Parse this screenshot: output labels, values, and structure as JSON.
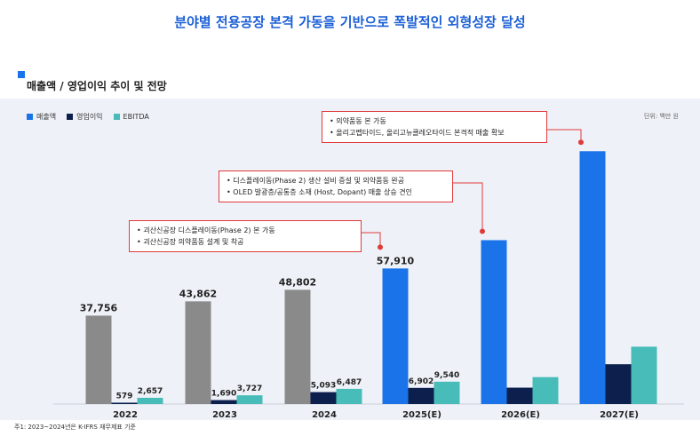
{
  "headline": "분야별 전용공장 본격 가동을 기반으로 폭발적인 외형성장 달성",
  "section_title": "매출액 / 영업이익 추이 및 전망",
  "unit": "단위: 백만 원",
  "footnote": "주1: 2023~2024년은 K-IFRS 재무제표 기준",
  "callouts": [
    {
      "lines": [
        "괴산신공장 디스플레이동(Phase 2) 본 가동",
        "괴산신공장 의약품동 설계 및 착공"
      ]
    },
    {
      "lines": [
        "디스플레이동(Phase 2) 생산 설비 증설 및 의약품동 완공",
        "OLED 발광층/공통층 소재 (Host, Dopant) 매출 상승 견인"
      ]
    },
    {
      "lines": [
        "의약품동 본 가동",
        "올리고펩타이드, 올리고뉴클레오타이드 본격적 매출 확보"
      ]
    }
  ],
  "chart_data": {
    "type": "bar",
    "categories": [
      "2022",
      "2023",
      "2024",
      "2025(E)",
      "2026(E)",
      "2027(E)"
    ],
    "series": [
      {
        "name": "매출액",
        "values": [
          37756,
          43862,
          48802,
          57910,
          70000,
          108000
        ],
        "labels": [
          "37,756",
          "43,862",
          "48,802",
          "57,910",
          "",
          ""
        ]
      },
      {
        "name": "영업이익",
        "values": [
          579,
          1690,
          5093,
          6902,
          7000,
          17000
        ],
        "labels": [
          "579",
          "1,690",
          "5,093",
          "6,902",
          "",
          ""
        ]
      },
      {
        "name": "EBITDA",
        "values": [
          2657,
          3727,
          6487,
          9540,
          11500,
          24500
        ],
        "labels": [
          "2,657",
          "3,727",
          "6,487",
          "9,540",
          "",
          ""
        ]
      }
    ],
    "colors": {
      "revenue_actual": "#8a8a8a",
      "revenue_forecast": "#1a73e8",
      "operating_profit": "#0d1f4d",
      "ebitda": "#48bcb8"
    },
    "legend_colors": [
      "#1a73e8",
      "#0d1f4d",
      "#48bcb8"
    ],
    "legend_position": "top-left",
    "ylim": [
      0,
      110000
    ],
    "grid": false
  }
}
